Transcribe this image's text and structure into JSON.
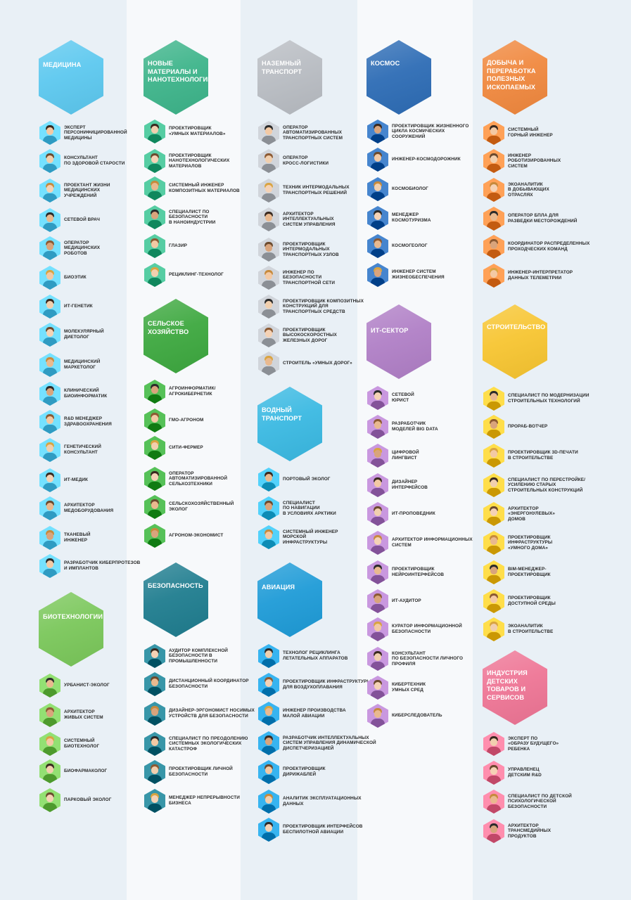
{
  "sections": [
    {
      "title": "Медицина",
      "color": "#5cc8ef",
      "items": [
        "Эксперт\nперсонифицированной\nмедицины",
        "Консультант\nпо здоровой старости",
        "Проектант жизни\nмедицинских\nучреждений",
        "Сетевой врач",
        "Оператор\nмедицинских\nроботов",
        "Биоэтик",
        "ИТ-генетик",
        "Молекулярный\nдиетолог",
        "Медицинский\nмаркетолог",
        "Клинический\nбиоинформатик",
        "R&D менеджер\nздравоохранения",
        "Генетический\nконсультант",
        "ИТ-медик",
        "Архитектор\nмедоборудования",
        "Тканевый\nинженер",
        "Разработчик киберпротезов\nи имплантов"
      ]
    },
    {
      "title": "Биотехнологии",
      "color": "#7ac75a",
      "items": [
        "Урбанист-эколог",
        "Архитектор\nживых систем",
        "Системный\nбиотехнолог",
        "Биофармаколог",
        "Парковый эколог"
      ]
    },
    {
      "title": "Новые\nматериалы и\nнанотехнологии",
      "color": "#3db48a",
      "items": [
        "Проектировщик\n«умных материалов»",
        "Проектировщик\nнанотехнологических\nматериалов",
        "Системный инженер\nкомпозитных материалов",
        "Специалист по\nбезопасности\nв наноиндустрии",
        "Глазир",
        "Рециклинг-технолог"
      ]
    },
    {
      "title": "Сельское\nхозяйство",
      "color": "#3da83f",
      "items": [
        "Агроинформатик/\nагрокибернетик",
        "ГМО-агроном",
        "Сити-фермер",
        "Оператор\nавтоматизированной\nсельхозтехники",
        "Сельскохозяйственный\nэколог",
        "Агроном-экономист"
      ]
    },
    {
      "title": "Безопасность",
      "color": "#1f7d8f",
      "items": [
        "Аудитор комплексной\nбезопасности в\nпромышленности",
        "Дистанционный координатор\nбезопасности",
        "Дизайнер-эргономист носимых\nустройств для безопасности",
        "Специалист по преодолению\nсистемных экологических\nкатастроф",
        "Проектировщик личной\nбезопасности",
        "Менеджер непрерывности\nбизнеса"
      ]
    },
    {
      "title": "Наземный\nтранспорт",
      "color": "#b8bcc2",
      "items": [
        "Оператор\nавтоматизированных\nтранспортных систем",
        "Оператор\nкросс-логистики",
        "Техник интермодальных\nтранспортных решений",
        "Архитектор\nинтеллектуальных\nсистем управления",
        "Проектировщик\nинтермодальных\nтранспортных узлов",
        "Инженер по\nбезопасности\nтранспортной сети",
        "Проектировщик композитных\nконструкций для\nтранспортных средств",
        "Проектировщик\nвысокоскоростных\nжелезных дорог",
        "Строитель «умных дорог»"
      ]
    },
    {
      "title": "Водный\nтранспорт",
      "color": "#3ab9e2",
      "items": [
        "Портовый эколог",
        "Специалист\nпо навигации\nв условиях Арктики",
        "Системный инженер\nморской\nинфраструктуры"
      ]
    },
    {
      "title": "Авиация",
      "color": "#1e9bd7",
      "items": [
        "Технолог рециклинга\nлетательных аппаратов",
        "Проектировщик инфраструктуры\nдля воздухоплавания",
        "Инженер производства\nмалой авиации",
        "Разработчик интеллектуальных\nсистем управления динамической\nдиспетчеризацией",
        "Проектировщик\nдирижаблей",
        "Аналитик эксплуатационных\nданных",
        "Проектировщик интерфейсов\nбеспилотной авиации"
      ]
    },
    {
      "title": "Космос",
      "color": "#2d6cb5",
      "items": [
        "Проектировщик жизненного\nцикла космических\nсооружений",
        "Инженер-космодорожник",
        "Космобиолог",
        "Менеджер\nкосмотуризма",
        "Космогеолог",
        "Инженер систем\nжизнеобеспечения"
      ]
    },
    {
      "title": "ИТ-сектор",
      "color": "#b07fc6",
      "items": [
        "Сетевой\nюрист",
        "Разработчик\nмоделей Big Data",
        "Цифровой\nлингвист",
        "Дизайнер\nинтерфейсов",
        "ИТ-проповедник",
        "Архитектор информационных\nсистем",
        "Проектировщик\nнейроинтерфейсов",
        "ИТ-аудитор",
        "Куратор информационной\nбезопасности",
        "Консультант\nпо безопасности личного\nпрофиля",
        "Кибертехник\nумных сред",
        "Киберследователь"
      ]
    },
    {
      "title": "Добыча и\nпереработка\nполезных\nископаемых",
      "color": "#f0883e",
      "items": [
        "Системный\nгорный инженер",
        "Инженер\nроботизированных\nсистем",
        "Экоаналитик\nв добывающих\nотраслях",
        "Оператор БПЛА для\nразведки месторождений",
        "Координатор распределенных\nпроходческих команд",
        "Инженер-интерпретатор\nданных телеметрии"
      ]
    },
    {
      "title": "Строительство",
      "color": "#f7c531",
      "items": [
        "Специалист по модернизации\nстроительных технологий",
        "Прораб-вотчер",
        "Проектировщик 3D-печати\nв строительстве",
        "Специалист по перестройке/\nусилению старых\nстроительных конструкций",
        "Архитектор\n«энергонулевых»\nдомов",
        "Проектировщик\nинфраструктуры\n«умного дома»",
        "BIM-менеджер-\nпроектировщик",
        "Проектировщик\nдоступной среды",
        "Экоаналитик\nв строительстве"
      ]
    },
    {
      "title": "Индустрия детских\nтоваров и сервисов",
      "color": "#ee7595",
      "items": [
        "Эксперт по\n«образу будущего»\nребенка",
        "Управленец\nдетским R&D",
        "Специалист по детской\nпсихологической\nбезопасности",
        "Архитектор\nтрансмедийных\nпродуктов"
      ]
    }
  ]
}
